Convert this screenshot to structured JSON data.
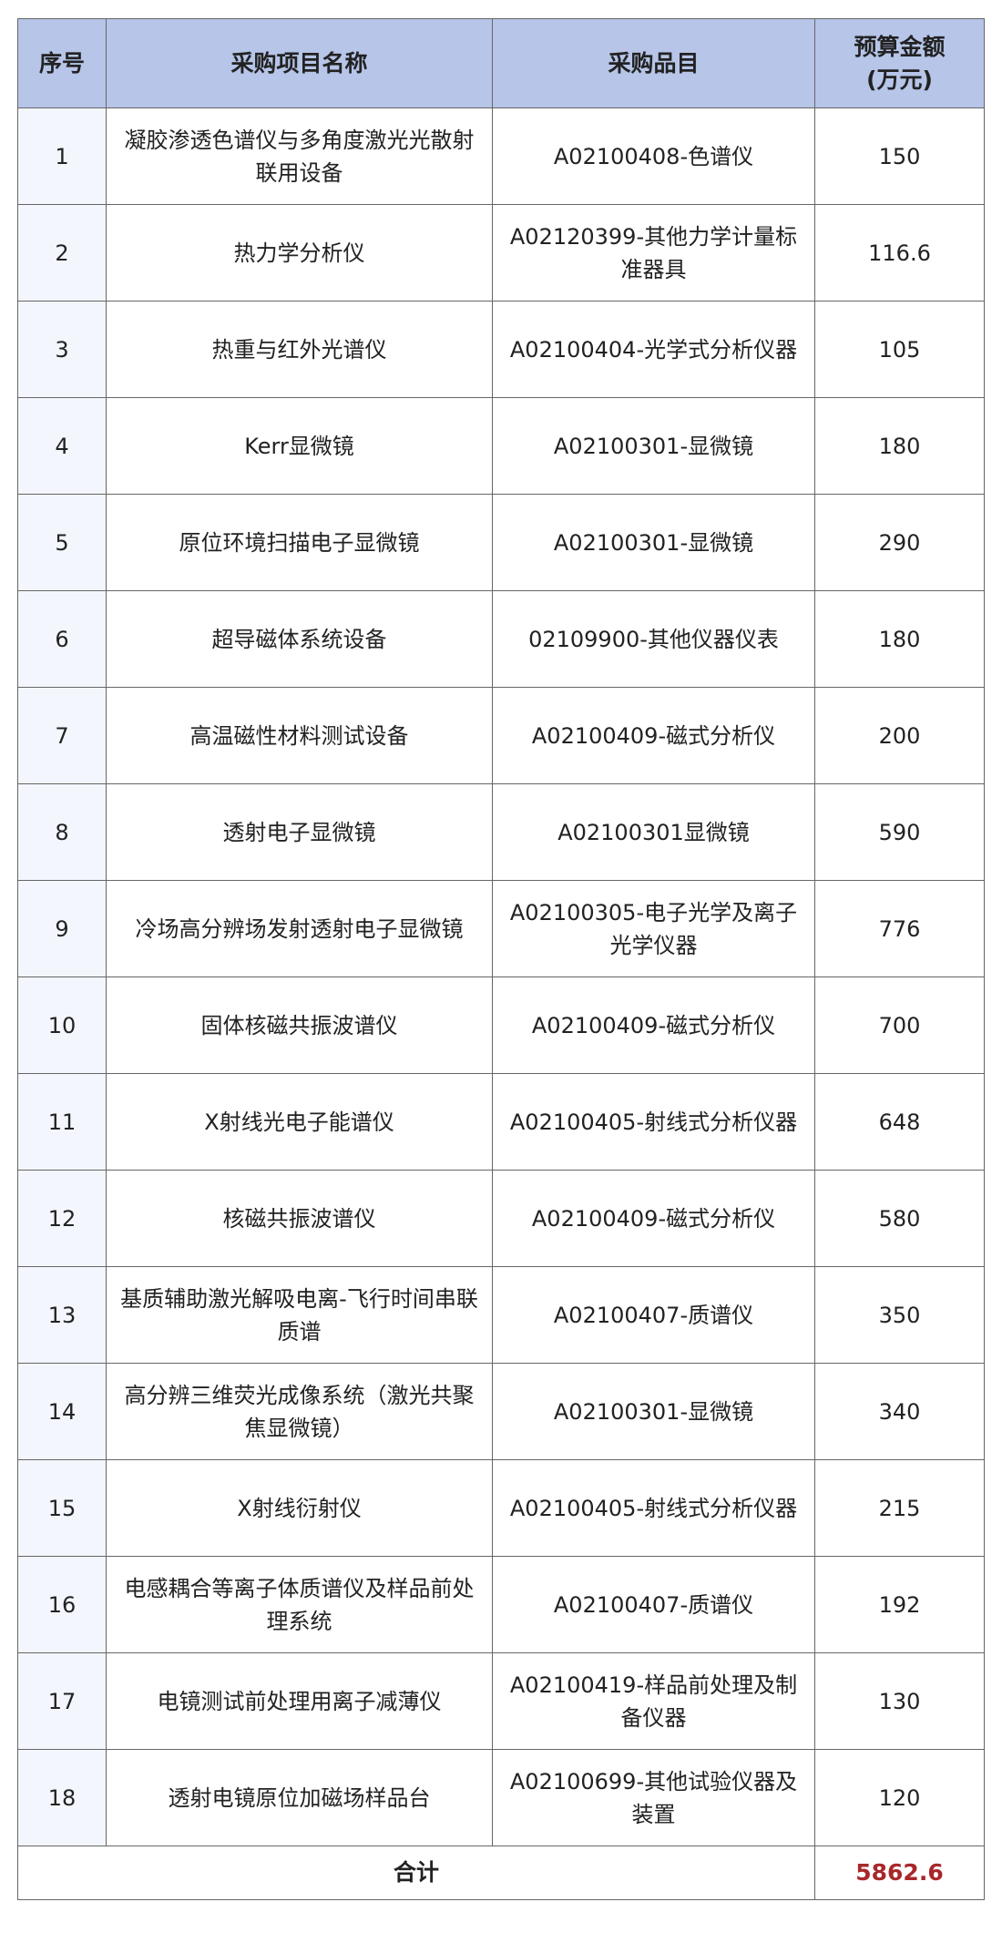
{
  "headers": {
    "no": "序号",
    "name": "采购项目名称",
    "item": "采购品目",
    "budget_line1": "预算金额",
    "budget_line2": "(万元)"
  },
  "rows": [
    {
      "no": "1",
      "name": "凝胶渗透色谱仪与多角度激光光散射联用设备",
      "item": "A02100408-色谱仪",
      "budget": "150"
    },
    {
      "no": "2",
      "name": "热力学分析仪",
      "item": "A02120399-其他力学计量标准器具",
      "budget": "116.6"
    },
    {
      "no": "3",
      "name": "热重与红外光谱仪",
      "item": "A02100404-光学式分析仪器",
      "budget": "105"
    },
    {
      "no": "4",
      "name": "Kerr显微镜",
      "item": "A02100301-显微镜",
      "budget": "180"
    },
    {
      "no": "5",
      "name": "原位环境扫描电子显微镜",
      "item": "A02100301-显微镜",
      "budget": "290"
    },
    {
      "no": "6",
      "name": "超导磁体系统设备",
      "item": "02109900-其他仪器仪表",
      "budget": "180"
    },
    {
      "no": "7",
      "name": "高温磁性材料测试设备",
      "item": "A02100409-磁式分析仪",
      "budget": "200"
    },
    {
      "no": "8",
      "name": "透射电子显微镜",
      "item": "A02100301显微镜",
      "budget": "590"
    },
    {
      "no": "9",
      "name": "冷场高分辨场发射透射电子显微镜",
      "item": "A02100305-电子光学及离子光学仪器",
      "budget": "776"
    },
    {
      "no": "10",
      "name": "固体核磁共振波谱仪",
      "item": "A02100409-磁式分析仪",
      "budget": "700"
    },
    {
      "no": "11",
      "name": "X射线光电子能谱仪",
      "item": "A02100405-射线式分析仪器",
      "budget": "648"
    },
    {
      "no": "12",
      "name": "核磁共振波谱仪",
      "item": "A02100409-磁式分析仪",
      "budget": "580"
    },
    {
      "no": "13",
      "name": "基质辅助激光解吸电离-飞行时间串联质谱",
      "item": "A02100407-质谱仪",
      "budget": "350"
    },
    {
      "no": "14",
      "name": "高分辨三维荧光成像系统（激光共聚焦显微镜）",
      "item": "A02100301-显微镜",
      "budget": "340"
    },
    {
      "no": "15",
      "name": "X射线衍射仪",
      "item": "A02100405-射线式分析仪器",
      "budget": "215"
    },
    {
      "no": "16",
      "name": "电感耦合等离子体质谱仪及样品前处理系统",
      "item": "A02100407-质谱仪",
      "budget": "192"
    },
    {
      "no": "17",
      "name": "电镜测试前处理用离子减薄仪",
      "item": "A02100419-样品前处理及制备仪器",
      "budget": "130"
    },
    {
      "no": "18",
      "name": "透射电镜原位加磁场样品台",
      "item": "A02100699-其他试验仪器及装置",
      "budget": "120"
    }
  ],
  "total": {
    "label": "合计",
    "value": "5862.6"
  },
  "colors": {
    "header_bg": "#b6c5e8",
    "total_value": "#a8272a"
  }
}
